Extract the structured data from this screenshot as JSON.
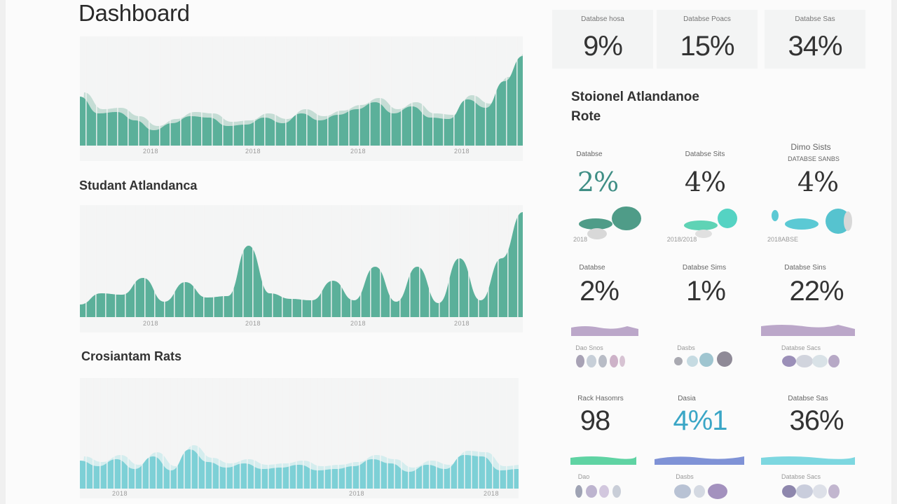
{
  "page": {
    "title": "Dashboard"
  },
  "sections": {
    "chart2_title": "Studant Atlandanca",
    "chart3_title": "Crosiantam Rats"
  },
  "charts": {
    "chart1": {
      "tick_labels": [
        "2018",
        "2018",
        "2018",
        "2018"
      ]
    },
    "chart2": {
      "tick_labels": [
        "2018",
        "2018",
        "2018",
        "2018"
      ]
    },
    "chart3": {
      "tick_labels": [
        "2018",
        "2018",
        "2018"
      ]
    }
  },
  "stat_cards": [
    {
      "label": "Databse hosa",
      "value": "9%"
    },
    {
      "label": "Databse Poacs",
      "value": "15%"
    },
    {
      "label": "Databse Sas",
      "value": "34%"
    }
  ],
  "right_panel": {
    "title": "Stoionel Atlandanoe Rote",
    "row1": [
      {
        "label": "Databse",
        "value": "2%",
        "caption": "2018"
      },
      {
        "label": "Databse Sits",
        "value": "4%",
        "caption": "2018/2018"
      },
      {
        "label": "Dimo Sists",
        "label2": "DATABSE SANBS",
        "value": "4%",
        "caption": "2018ABSE"
      }
    ],
    "row2": [
      {
        "label": "Databse",
        "value": "2%"
      },
      {
        "label": "Databse Sims",
        "value": "1%"
      },
      {
        "label": "Databse Sins",
        "value": "22%"
      }
    ],
    "row2_captions": [
      "Dao Snos",
      "Dasbs",
      "Databse Sacs"
    ],
    "row3": [
      {
        "label": "Rack Hasomrs",
        "value": "98"
      },
      {
        "label": "Dasia",
        "value": "4%1"
      },
      {
        "label": "Databse Sas",
        "value": "36%"
      }
    ],
    "row3_captions": [
      "Dao",
      "Dasbs",
      "Databse Sacs"
    ]
  },
  "colors": {
    "teal": "#5bb09a",
    "teal_dark": "#4f9c88",
    "teal_shadow": "#9fc9ba",
    "cyan": "#7dd0d6",
    "mint": "#5fd3b5",
    "lavender": "#bba7c9",
    "blue": "#7f92d6"
  }
}
